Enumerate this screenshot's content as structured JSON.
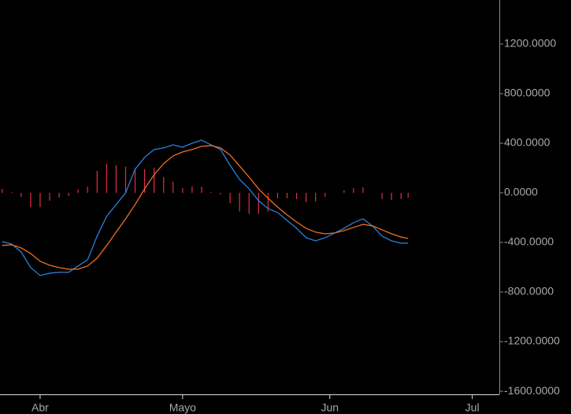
{
  "chart_data": {
    "type": "line",
    "x": [
      -8,
      -6,
      -4,
      -2,
      0,
      2,
      4,
      6,
      8,
      10,
      12,
      14,
      16,
      18,
      20,
      22,
      24,
      26,
      28,
      30,
      32,
      34,
      36,
      38,
      40,
      42,
      44,
      46,
      48,
      50,
      52,
      54,
      56,
      58,
      60,
      62,
      64,
      66,
      68,
      70,
      72,
      74,
      76,
      77.5
    ],
    "series": [
      {
        "type": "bar",
        "color": "#e03048",
        "values": [
          31,
          6,
          -32,
          -114,
          -115,
          -64,
          -38,
          -25,
          26,
          50,
          178,
          235,
          222,
          210,
          200,
          190,
          203,
          127,
          89,
          38,
          51,
          50,
          6,
          -13,
          -83,
          -150,
          -170,
          -170,
          -150,
          -45,
          -44,
          -51,
          -76,
          -70,
          -32,
          0,
          19,
          38,
          44,
          0,
          -51,
          -57,
          -50,
          -38
        ]
      },
      {
        "type": "line",
        "color": "#2a7fd8",
        "values": [
          -394,
          -413,
          -476,
          -603,
          -667,
          -648,
          -641,
          -641,
          -590,
          -540,
          -349,
          -190,
          -95,
          0,
          190,
          286,
          349,
          362,
          387,
          368,
          400,
          425,
          387,
          349,
          222,
          108,
          32,
          -63,
          -127,
          -159,
          -222,
          -286,
          -362,
          -387,
          -362,
          -324,
          -286,
          -241,
          -210,
          -267,
          -349,
          -387,
          -406,
          -406
        ]
      },
      {
        "type": "line",
        "color": "#f07020",
        "values": [
          -425,
          -419,
          -444,
          -489,
          -552,
          -584,
          -603,
          -616,
          -616,
          -590,
          -527,
          -425,
          -317,
          -210,
          -95,
          32,
          146,
          235,
          298,
          330,
          349,
          375,
          381,
          362,
          305,
          216,
          127,
          32,
          -44,
          -114,
          -178,
          -235,
          -286,
          -317,
          -330,
          -324,
          -305,
          -279,
          -254,
          -267,
          -298,
          -330,
          -356,
          -368
        ]
      }
    ],
    "xlim": [
      -8.45,
      96.7
    ],
    "xticks": [
      {
        "value": 0,
        "label": "Abr"
      },
      {
        "value": 30,
        "label": "Mayo"
      },
      {
        "value": 61,
        "label": "Jun"
      },
      {
        "value": 91,
        "label": "Jul"
      }
    ],
    "ylim": [
      -1625,
      1555
    ],
    "yticks": [
      {
        "value": 1200,
        "label": "1200.0000"
      },
      {
        "value": 800,
        "label": "800.0000"
      },
      {
        "value": 400,
        "label": "400.0000"
      },
      {
        "value": 0,
        "label": "0.0000"
      },
      {
        "value": -400,
        "label": "-400.0000"
      },
      {
        "value": -800,
        "label": "-800.0000"
      },
      {
        "value": -1200,
        "label": "-1200.0000"
      },
      {
        "value": -1600,
        "label": "-1600.0000"
      }
    ]
  }
}
